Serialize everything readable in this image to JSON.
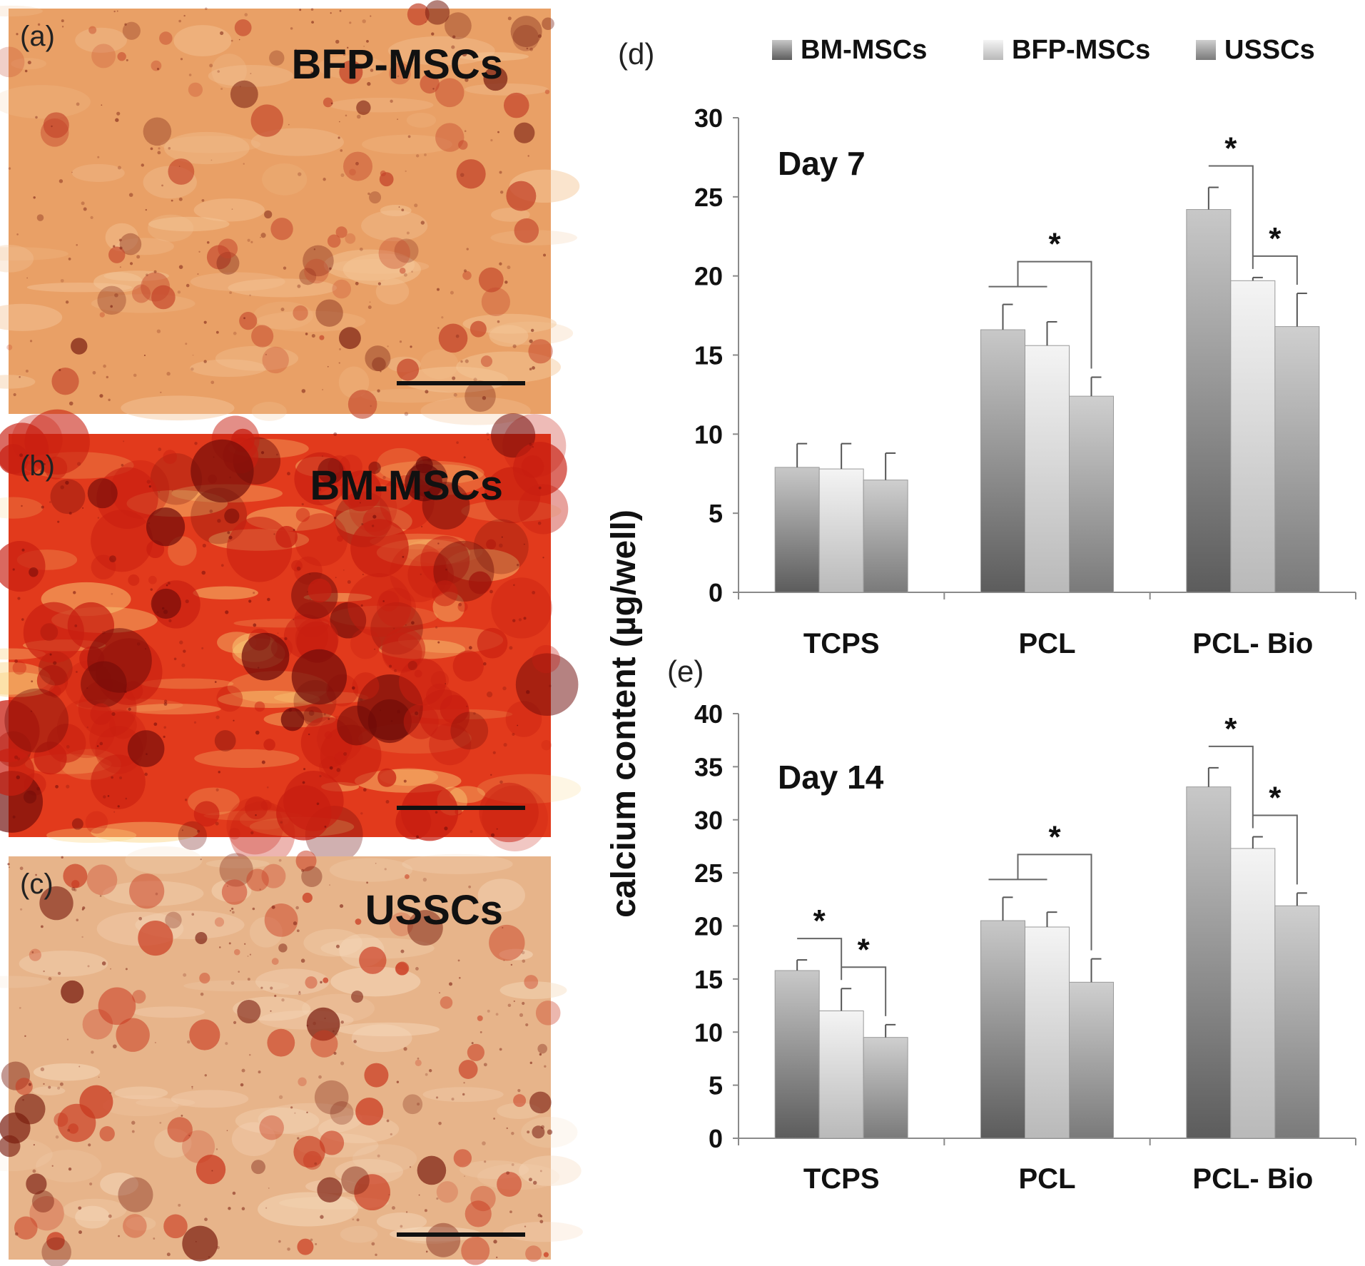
{
  "panels": [
    {
      "letter": "(a)",
      "label": "BFP-MSCs",
      "palette": {
        "base": "#e9a066",
        "light": "#f4c79a",
        "stain": "#c4442a",
        "dark": "#7a1f12"
      },
      "density": 0.35
    },
    {
      "letter": "(b)",
      "label": "BM-MSCs",
      "palette": {
        "base": "#e23a1c",
        "light": "#fbd27a",
        "stain": "#c81e10",
        "dark": "#6e0a08"
      },
      "density": 0.95
    },
    {
      "letter": "(c)",
      "label": "USSCs",
      "palette": {
        "base": "#e7b48a",
        "light": "#f7dcc0",
        "stain": "#c9381f",
        "dark": "#7a1d10"
      },
      "density": 0.45
    }
  ],
  "legend": [
    "BM-MSCs",
    "BFP-MSCs",
    "USSCs"
  ],
  "colors": {
    "BM-MSCs": "#8f8f8f",
    "BFP-MSCs": "#dcdcdc",
    "USSCs": "#a9a9a9",
    "axis": "#8a8a8a",
    "text": "#111111"
  },
  "ylabel": "calcium content (µg/well)",
  "chart_data": [
    {
      "type": "bar",
      "panel": "(d)",
      "title": "Day 7",
      "categories": [
        "TCPS",
        "PCL",
        "PCL- Bio"
      ],
      "ylim": [
        0,
        30
      ],
      "yticks": [
        0,
        5,
        10,
        15,
        20,
        25,
        30
      ],
      "series": [
        {
          "name": "BM-MSCs",
          "values": [
            7.9,
            16.6,
            24.2
          ],
          "errors": [
            1.5,
            1.6,
            1.4
          ]
        },
        {
          "name": "BFP-MSCs",
          "values": [
            7.8,
            15.6,
            19.7
          ],
          "errors": [
            1.6,
            1.5,
            0.2
          ]
        },
        {
          "name": "USSCs",
          "values": [
            7.1,
            12.4,
            16.8
          ],
          "errors": [
            1.7,
            1.2,
            2.1
          ]
        }
      ],
      "significance": [
        {
          "category": 1,
          "label": "*",
          "type": "group-vs-third"
        },
        {
          "category": 2,
          "label": "*",
          "from": 0,
          "to": 1
        },
        {
          "category": 2,
          "label": "*",
          "from": 1,
          "to": 2
        }
      ]
    },
    {
      "type": "bar",
      "panel": "(e)",
      "title": "Day 14",
      "categories": [
        "TCPS",
        "PCL",
        "PCL- Bio"
      ],
      "ylim": [
        0,
        40
      ],
      "yticks": [
        0,
        5,
        10,
        15,
        20,
        25,
        30,
        35,
        40
      ],
      "series": [
        {
          "name": "BM-MSCs",
          "values": [
            15.8,
            20.5,
            33.1
          ],
          "errors": [
            1.0,
            2.2,
            1.8
          ]
        },
        {
          "name": "BFP-MSCs",
          "values": [
            12.0,
            19.9,
            27.3
          ],
          "errors": [
            2.1,
            1.4,
            1.1
          ]
        },
        {
          "name": "USSCs",
          "values": [
            9.5,
            14.7,
            21.9
          ],
          "errors": [
            1.2,
            2.2,
            1.2
          ]
        }
      ],
      "significance": [
        {
          "category": 0,
          "label": "*",
          "from": 0,
          "to": 1
        },
        {
          "category": 0,
          "label": "*",
          "from": 1,
          "to": 2
        },
        {
          "category": 1,
          "label": "*",
          "type": "group-vs-third"
        },
        {
          "category": 2,
          "label": "*",
          "from": 0,
          "to": 1
        },
        {
          "category": 2,
          "label": "*",
          "from": 1,
          "to": 2
        }
      ]
    }
  ]
}
